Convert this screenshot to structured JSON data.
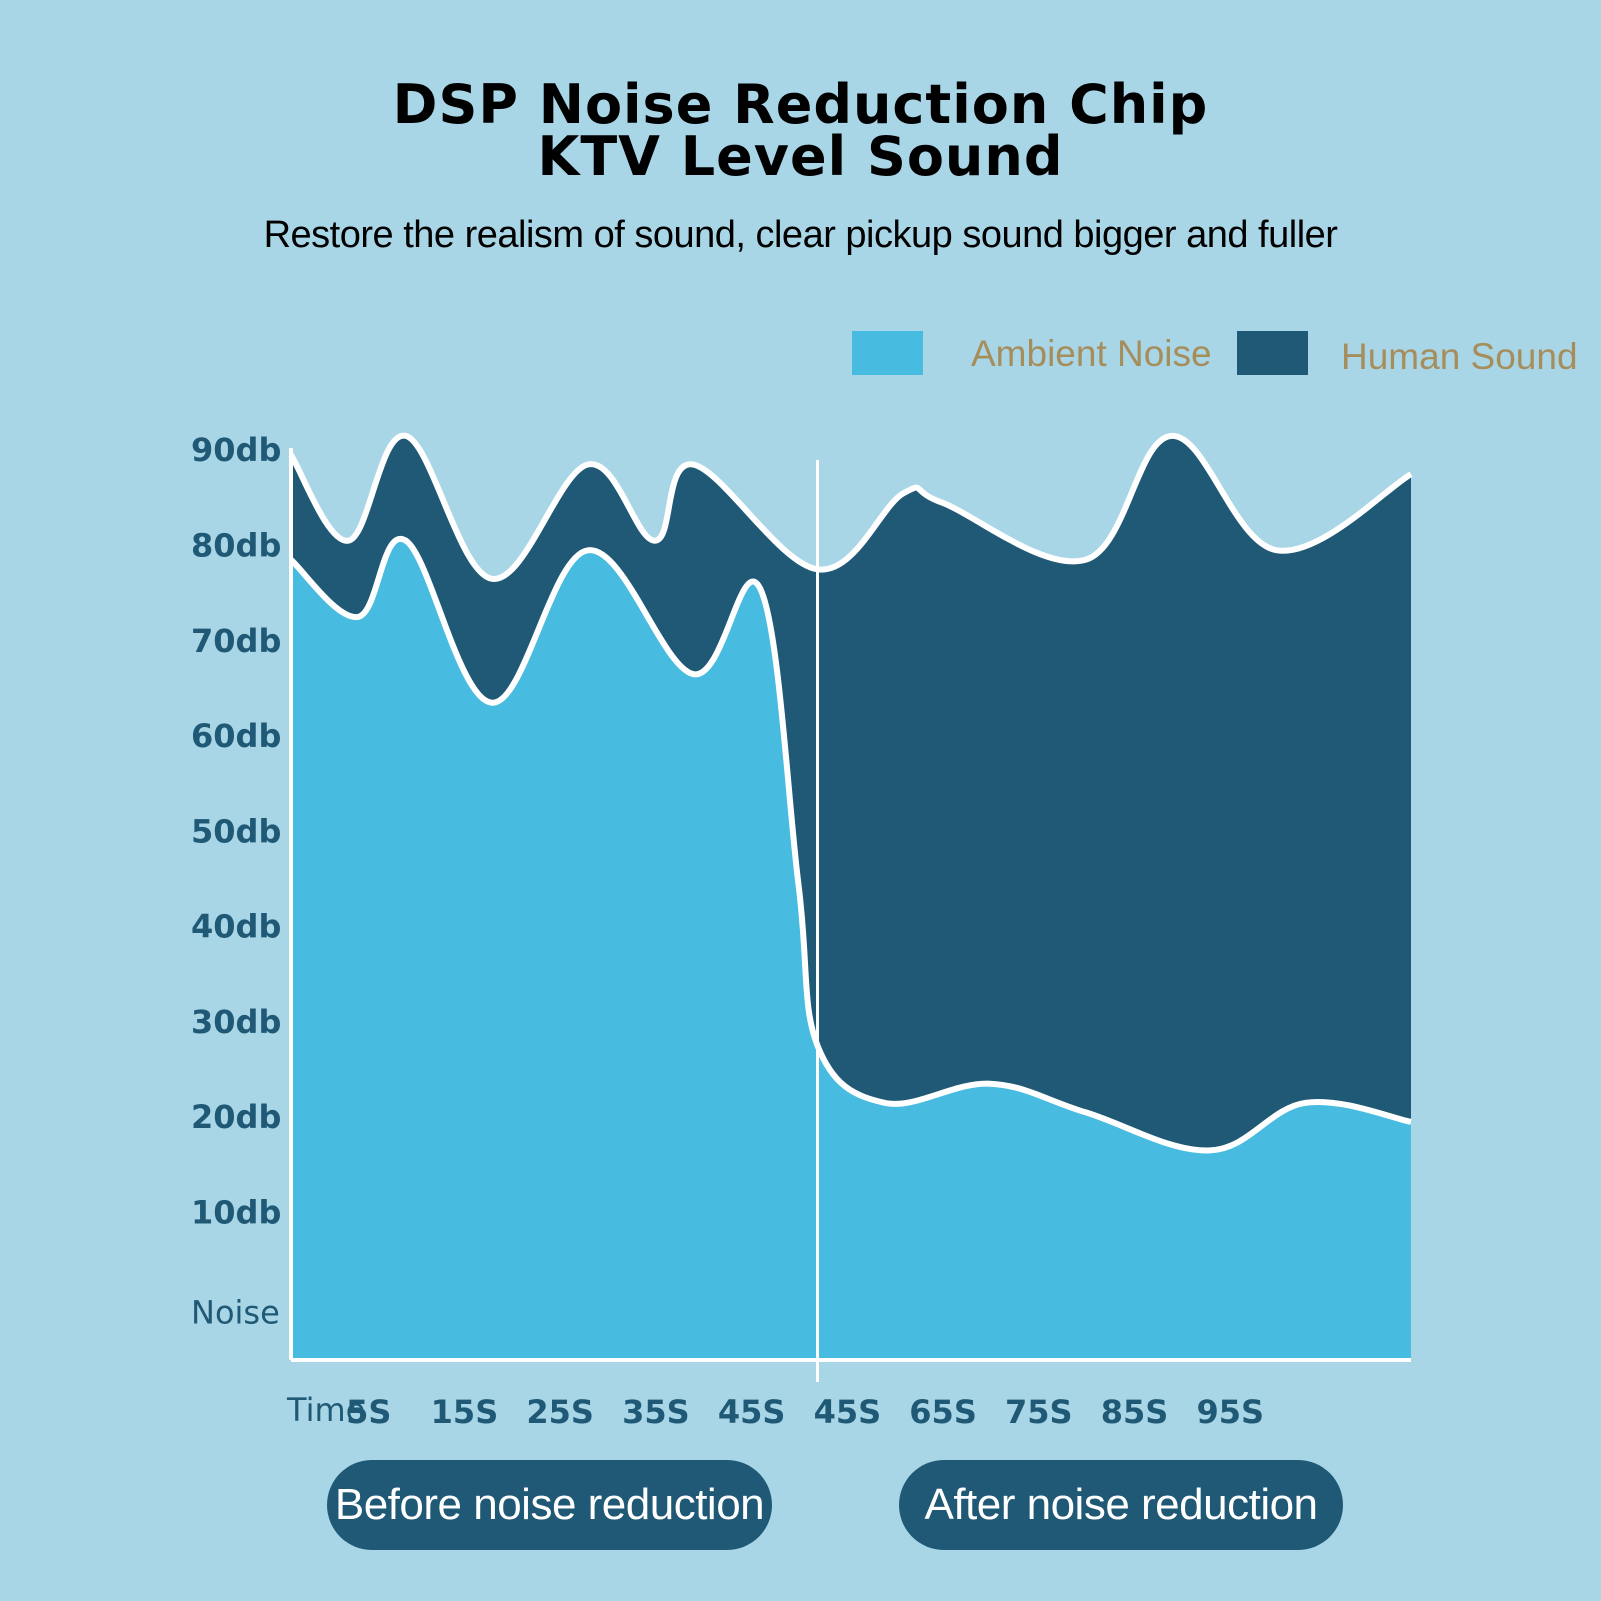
{
  "header": {
    "title_line1": "DSP Noise Reduction Chip",
    "title_line2": "KTV Level Sound",
    "subtitle": "Restore the realism of sound, clear pickup sound bigger and fuller"
  },
  "legend": {
    "ambient_label": "Ambient Noise",
    "human_label": "Human Sound"
  },
  "colors": {
    "background": "#a8d6e6",
    "ambient": "#47bbe0",
    "human": "#1f5975",
    "axis_text": "#1f5975",
    "legend_text": "#a68e5c",
    "line": "#ffffff"
  },
  "chart_data": {
    "type": "area",
    "title": "DSP Noise Reduction Chip KTV Level Sound",
    "ylabel": "",
    "xlabel": "Time",
    "ylim": [
      0,
      95
    ],
    "y_ticks": [
      {
        "label": "Noise",
        "value": 5
      },
      {
        "label": "10db",
        "value": 15.5
      },
      {
        "label": "20db",
        "value": 25.5
      },
      {
        "label": "30db",
        "value": 35.5
      },
      {
        "label": "40db",
        "value": 45.5
      },
      {
        "label": "50db",
        "value": 55.5
      },
      {
        "label": "60db",
        "value": 65.5
      },
      {
        "label": "70db",
        "value": 75.5
      },
      {
        "label": "80db",
        "value": 85.5
      },
      {
        "label": "90db",
        "value": 95.5
      }
    ],
    "x_label": "Time",
    "x_ticks": [
      "5S",
      "15S",
      "25S",
      "35S",
      "45S",
      "45S",
      "65S",
      "75S",
      "85S",
      "95S"
    ],
    "divider_at": 5.5,
    "x_range": [
      0,
      11.7
    ],
    "series": [
      {
        "name": "Human Sound",
        "x": [
          0,
          0.6,
          1.2,
          2.1,
          3.1,
          3.8,
          4.2,
          5.5,
          6.4,
          6.8,
          8.3,
          9.2,
          10.3,
          11.7
        ],
        "values": [
          95,
          86,
          97,
          82,
          94,
          86,
          94,
          83,
          91,
          90,
          84,
          97,
          85,
          93
        ]
      },
      {
        "name": "Ambient Noise",
        "x": [
          0,
          0.7,
          1.2,
          2.1,
          3.1,
          4.2,
          4.9,
          5.3,
          5.5,
          6.2,
          7.3,
          8.3,
          9.6,
          10.6,
          11.7
        ],
        "values": [
          84,
          78,
          86,
          69,
          85,
          72,
          81,
          50,
          33,
          27,
          29,
          26,
          22,
          27,
          25
        ]
      }
    ]
  },
  "footer": {
    "before_label": "Before noise reduction",
    "after_label": "After noise reduction"
  }
}
